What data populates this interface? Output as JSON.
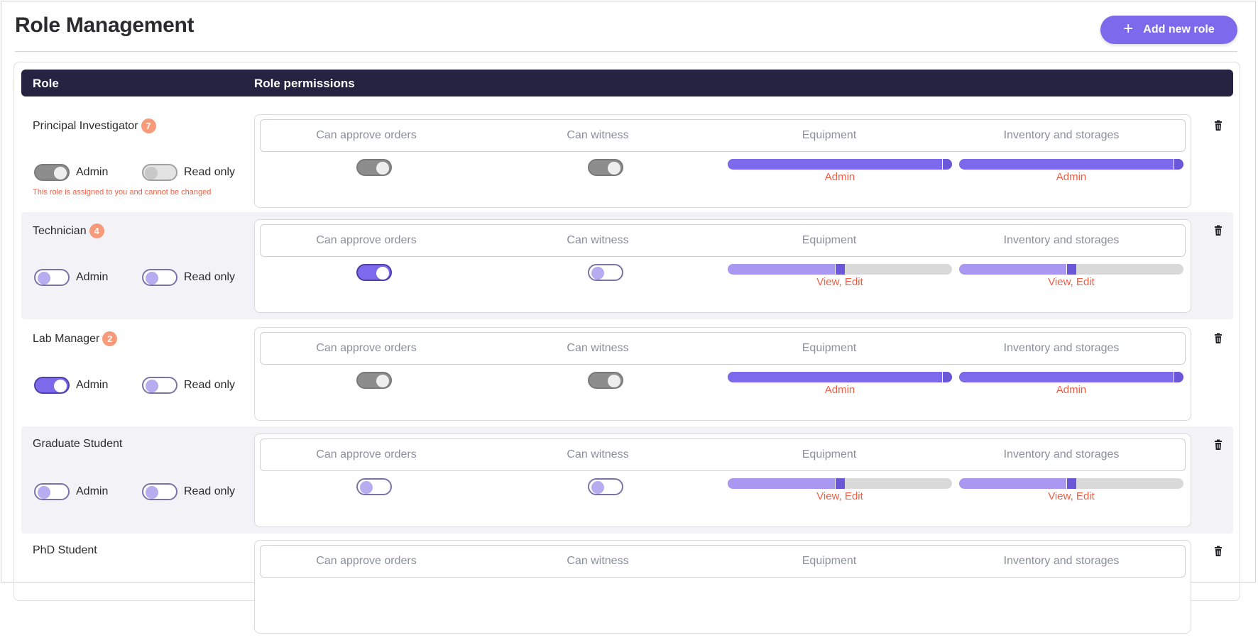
{
  "page": {
    "title": "Role Management"
  },
  "add_button": {
    "label": "Add new role",
    "icon": "plus-icon"
  },
  "table": {
    "col_role": "Role",
    "col_permissions": "Role permissions"
  },
  "perm_columns": {
    "approve": "Can approve orders",
    "witness": "Can witness",
    "equipment": "Equipment",
    "inventory": "Inventory and storages"
  },
  "toggle_labels": {
    "admin": "Admin",
    "readonly": "Read only"
  },
  "roles": [
    {
      "name": "Principal Investigator",
      "count": "7",
      "note": "This role is assigned to you and cannot be changed",
      "admin": "locked-on",
      "readonly": "locked-off",
      "can_approve": "locked-on",
      "can_witness": "locked-on",
      "equipment": {
        "label": "Admin",
        "level": 1.0
      },
      "inventory": {
        "label": "Admin",
        "level": 1.0
      }
    },
    {
      "name": "Technician",
      "count": "4",
      "admin": "off",
      "readonly": "off",
      "can_approve": "on",
      "can_witness": "off",
      "equipment": {
        "label": "View, Edit",
        "level": 0.5
      },
      "inventory": {
        "label": "View, Edit",
        "level": 0.5
      }
    },
    {
      "name": "Lab Manager",
      "count": "2",
      "admin": "on",
      "readonly": "off",
      "can_approve": "locked-on",
      "can_witness": "locked-on",
      "equipment": {
        "label": "Admin",
        "level": 1.0
      },
      "inventory": {
        "label": "Admin",
        "level": 1.0
      }
    },
    {
      "name": "Graduate Student",
      "admin": "off",
      "readonly": "off",
      "can_approve": "off",
      "can_witness": "off",
      "equipment": {
        "label": "View, Edit",
        "level": 0.5
      },
      "inventory": {
        "label": "View, Edit",
        "level": 0.5
      }
    },
    {
      "name": "PhD Student"
    }
  ],
  "colors": {
    "accent": "#7c69ec",
    "header_bg": "#262342",
    "badge": "#f79a79",
    "warning_text": "#f06147"
  }
}
